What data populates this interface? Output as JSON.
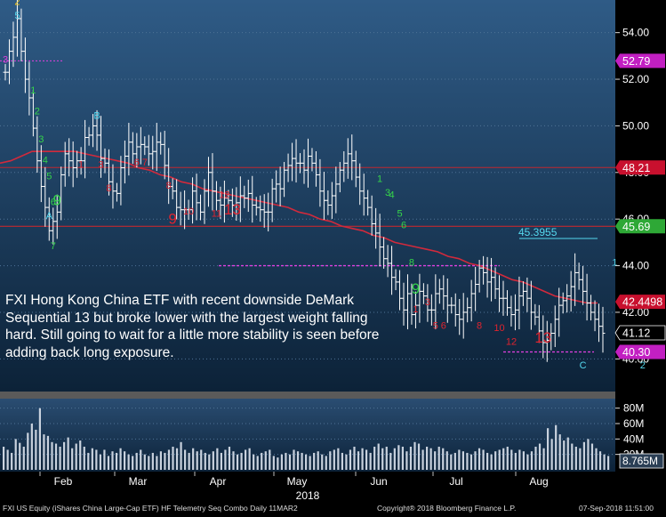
{
  "annotation": "FXI Hong Kong China ETF with recent downside DeMark Sequential 13 but broke lower with the largest weight falling hard.  Still going to wait for a little more stability is seen before adding back long exposure.",
  "footer": {
    "left": "FXI US Equity (iShares China Large-Cap ETF) HF Telemetry Seq Combo  Daily 11MAR2",
    "center": "Copyright® 2018 Bloomberg Finance L.P.",
    "right": "07-Sep-2018 11:51:00"
  },
  "colors": {
    "panel_top": "#2f5b86",
    "panel_bottom": "#0c2238",
    "moving_average": "#d12a3c",
    "resistance": "#c0282f",
    "magenta": "#e040e0",
    "cyan": "#55d8ee",
    "green": "#35d44a",
    "red": "#e0232e",
    "yellow": "#f0c419",
    "price_tag_red": "#c8102e",
    "price_tag_magenta": "#c21fc2",
    "price_tag_green": "#2ea836"
  },
  "chart_data": {
    "type": "ohlc",
    "title": "",
    "xlabel": "2018",
    "ylabel": "",
    "price_axis": {
      "ylim": [
        38.6,
        55.4
      ],
      "ticks": [
        "40.00",
        "42.00",
        "44.00",
        "46.00",
        "48.00",
        "50.00",
        "52.00",
        "54.00"
      ]
    },
    "month_labels": [
      "Feb",
      "Mar",
      "Apr",
      "May",
      "Jun",
      "Jul",
      "Aug"
    ],
    "year_label": "2018",
    "price_tags": [
      {
        "label": "52.79",
        "value": 52.79,
        "color": "magenta"
      },
      {
        "label": "48.21",
        "value": 48.21,
        "color": "red"
      },
      {
        "label": "45.69",
        "value": 45.69,
        "color": "green"
      },
      {
        "label": "42.4498",
        "value": 42.4498,
        "color": "red"
      },
      {
        "label": "41.12",
        "value": 41.12,
        "color": "white"
      },
      {
        "label": "40.30",
        "value": 40.3,
        "color": "magenta"
      }
    ],
    "level_labels": [
      {
        "label": "45.3955",
        "value": 45.3955,
        "color": "cyan"
      }
    ],
    "volume_axis": {
      "ylim": [
        0,
        90
      ],
      "ticks": [
        "20M",
        "40M",
        "60M",
        "80M"
      ],
      "last_label": "8.765M"
    },
    "series": [
      {
        "name": "price",
        "close": [
          52.3,
          53.2,
          53.8,
          54.6,
          53.2,
          52.0,
          51.2,
          49.9,
          48.5,
          47.4,
          46.5,
          45.5,
          45.9,
          46.3,
          47.9,
          48.8,
          48.5,
          48.2,
          48.5,
          48.5,
          49.5,
          49.6,
          50.0,
          49.6,
          48.6,
          48.4,
          47.6,
          47.2,
          47.1,
          48.2,
          48.7,
          49.3,
          48.8,
          49.1,
          49.2,
          49.1,
          48.8,
          48.9,
          49.3,
          49.2,
          48.3,
          47.4,
          47.2,
          46.5,
          46.4,
          46.4,
          46.4,
          47.2,
          46.7,
          46.3,
          47.2,
          48.0,
          47.2,
          46.8,
          46.6,
          46.9,
          46.8,
          46.6,
          46.7,
          47.0,
          46.9,
          47.1,
          46.6,
          46.5,
          46.4,
          46.3,
          46.3,
          47.3,
          47.5,
          47.3,
          48.1,
          48.3,
          48.6,
          48.4,
          48.4,
          48.1,
          48.7,
          48.4,
          47.9,
          47.2,
          46.8,
          46.6,
          47.0,
          47.5,
          48.1,
          48.4,
          48.8,
          48.5,
          47.8,
          47.2,
          46.9,
          46.5,
          45.8,
          45.4,
          44.8,
          44.3,
          44.1,
          43.5,
          43.3,
          42.6,
          42.1,
          42.8,
          41.9,
          42.3,
          42.9,
          42.7,
          42.1,
          42.1,
          42.8,
          43.0,
          42.7,
          42.3,
          42.3,
          41.9,
          41.7,
          42.0,
          42.2,
          42.8,
          43.2,
          43.9,
          43.7,
          43.3,
          43.5,
          43.0,
          42.6,
          42.6,
          42.2,
          41.9,
          42.1,
          42.7,
          42.9,
          42.6,
          42.0,
          41.8,
          41.2,
          40.7,
          40.8,
          41.1,
          41.7,
          42.3,
          42.5,
          42.7,
          43.1,
          43.7,
          43.4,
          42.9,
          42.4,
          42.0,
          41.7,
          41.4,
          41.1
        ]
      },
      {
        "name": "moving_average",
        "values": [
          48.4,
          48.5,
          48.7,
          48.9,
          48.9,
          48.9,
          48.9,
          48.9,
          48.8,
          48.7,
          48.6,
          48.5,
          48.4,
          48.2,
          48.1,
          47.9,
          47.8,
          47.6,
          47.5,
          47.3,
          47.2,
          47.1,
          47.0,
          46.9,
          46.8,
          46.7,
          46.6,
          46.5,
          46.3,
          46.2,
          46.0,
          45.9,
          45.7,
          45.6,
          45.5,
          45.3,
          45.2,
          45.0,
          44.9,
          44.8,
          44.7,
          44.6,
          44.4,
          44.3,
          44.1,
          44.0,
          43.8,
          43.6,
          43.4,
          43.3,
          43.1,
          42.9,
          42.7,
          42.6,
          42.5,
          42.4,
          42.4
        ]
      },
      {
        "name": "volume",
        "values": [
          30,
          26,
          22,
          40,
          35,
          30,
          48,
          60,
          52,
          80,
          46,
          44,
          36,
          34,
          30,
          36,
          42,
          28,
          34,
          38,
          30,
          22,
          28,
          26,
          20,
          26,
          18,
          24,
          22,
          28,
          24,
          20,
          18,
          22,
          26,
          20,
          18,
          22,
          18,
          24,
          22,
          26,
          30,
          28,
          36,
          26,
          22,
          28,
          24,
          26,
          22,
          20,
          24,
          28,
          22,
          26,
          30,
          24,
          20,
          22,
          26,
          28,
          20,
          18,
          22,
          24,
          26,
          18,
          16,
          20,
          22,
          20,
          26,
          24,
          22,
          20,
          18,
          22,
          24,
          20,
          18,
          24,
          26,
          28,
          22,
          20,
          26,
          30,
          24,
          28,
          26,
          22,
          30,
          34,
          28,
          30,
          22,
          28,
          32,
          30,
          24,
          30,
          36,
          34,
          26,
          30,
          28,
          24,
          30,
          28,
          24,
          20,
          22,
          26,
          24,
          22,
          20,
          24,
          28,
          26,
          22,
          20,
          24,
          26,
          28,
          30,
          26,
          22,
          26,
          24,
          20,
          24,
          30,
          34,
          28,
          54,
          40,
          58,
          46,
          38,
          42,
          34,
          30,
          28,
          36,
          40,
          34,
          28,
          24,
          20,
          18
        ]
      }
    ],
    "resistance_levels": [
      48.21,
      45.69
    ],
    "dotted_levels": [
      52.79,
      44.0,
      40.3
    ],
    "demark_counts": [
      {
        "text": "2",
        "color": "yellow",
        "i": 3,
        "v": 55.2
      },
      {
        "text": "5",
        "color": "cyan",
        "i": 3,
        "v": 54.6
      },
      {
        "text": "3",
        "color": "magenta",
        "i": 0,
        "v": 52.7
      },
      {
        "text": "1",
        "color": "green",
        "i": 7,
        "v": 51.4
      },
      {
        "text": "2",
        "color": "green",
        "i": 8,
        "v": 50.5
      },
      {
        "text": "3",
        "color": "green",
        "i": 9,
        "v": 49.3
      },
      {
        "text": "4",
        "color": "green",
        "i": 10,
        "v": 48.4
      },
      {
        "text": "5",
        "color": "green",
        "i": 11,
        "v": 47.7
      },
      {
        "text": "6",
        "color": "green",
        "i": 12,
        "v": 46.6
      },
      {
        "text": "9",
        "color": "green",
        "i": 13,
        "v": 46.6
      },
      {
        "text": "A",
        "color": "cyan",
        "i": 11,
        "v": 46.0
      },
      {
        "text": "7",
        "color": "green",
        "i": 12,
        "v": 44.7
      },
      {
        "text": "B",
        "color": "cyan",
        "i": 23,
        "v": 50.3
      },
      {
        "text": "1",
        "color": "red",
        "i": 19,
        "v": 48.2
      },
      {
        "text": "3",
        "color": "red",
        "i": 24,
        "v": 48.2
      },
      {
        "text": "6",
        "color": "red",
        "i": 33,
        "v": 48.3
      },
      {
        "text": "7",
        "color": "red",
        "i": 35,
        "v": 48.3
      },
      {
        "text": "8",
        "color": "red",
        "i": 26,
        "v": 47.2
      },
      {
        "text": "8",
        "color": "red",
        "i": 41,
        "v": 47.3
      },
      {
        "text": "9",
        "color": "red",
        "i": 42,
        "v": 45.8
      },
      {
        "text": "10",
        "color": "red",
        "i": 46,
        "v": 46.2
      },
      {
        "text": "11",
        "color": "red",
        "i": 53,
        "v": 46.1
      },
      {
        "text": "12",
        "color": "red",
        "i": 55,
        "v": 46.9
      },
      {
        "text": "13",
        "color": "red",
        "i": 57,
        "v": 46.2
      },
      {
        "text": "1",
        "color": "green",
        "i": 94,
        "v": 47.6
      },
      {
        "text": "3",
        "color": "green",
        "i": 96,
        "v": 47.0
      },
      {
        "text": "4",
        "color": "green",
        "i": 97,
        "v": 46.9
      },
      {
        "text": "5",
        "color": "green",
        "i": 99,
        "v": 46.1
      },
      {
        "text": "6",
        "color": "green",
        "i": 100,
        "v": 45.6
      },
      {
        "text": "8",
        "color": "green",
        "i": 102,
        "v": 44.0
      },
      {
        "text": "9",
        "color": "green",
        "i": 103,
        "v": 42.8
      },
      {
        "text": "1",
        "color": "red",
        "i": 103,
        "v": 42.0
      },
      {
        "text": "3",
        "color": "red",
        "i": 106,
        "v": 42.3
      },
      {
        "text": "5",
        "color": "red",
        "i": 108,
        "v": 41.3
      },
      {
        "text": "6",
        "color": "red",
        "i": 110,
        "v": 41.3
      },
      {
        "text": "8",
        "color": "red",
        "i": 119,
        "v": 41.3
      },
      {
        "text": "10",
        "color": "red",
        "i": 124,
        "v": 41.2
      },
      {
        "text": "12",
        "color": "red",
        "i": 127,
        "v": 40.6
      },
      {
        "text": "13",
        "color": "red",
        "i": 135,
        "v": 40.7
      },
      {
        "text": "C",
        "color": "cyan",
        "i": 145,
        "v": 39.6
      },
      {
        "text": "1",
        "color": "cyan",
        "i": 153,
        "v": 44.0
      },
      {
        "text": "2",
        "color": "cyan",
        "i": 160,
        "v": 39.6
      },
      {
        "text": "6",
        "color": "green",
        "i": 158,
        "v": 40.8
      }
    ]
  }
}
